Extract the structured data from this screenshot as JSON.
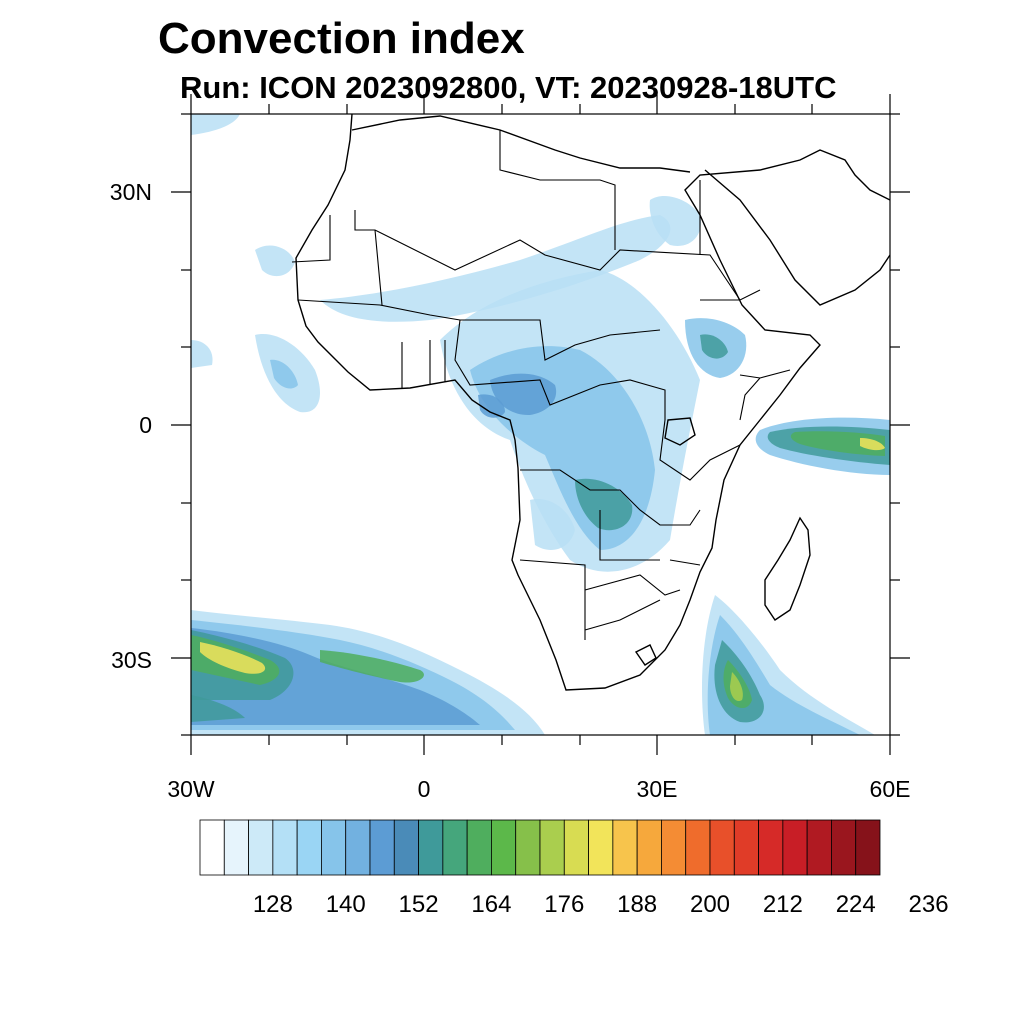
{
  "title": "Convection index",
  "subtitle": "Run: ICON 2023092800,  VT: 20230928-18UTC",
  "axes": {
    "lat_labels": [
      "30N",
      "0",
      "30S"
    ],
    "lon_labels": [
      "30W",
      "0",
      "30E",
      "60E"
    ]
  },
  "colorbar": {
    "labels": [
      "128",
      "140",
      "152",
      "164",
      "176",
      "188",
      "200",
      "212",
      "224",
      "236"
    ],
    "colors": [
      "#ffffff",
      "#e6f4fc",
      "#cdeaf8",
      "#b4e0f6",
      "#9ad5f4",
      "#86c4ea",
      "#72b1e0",
      "#5c9cd4",
      "#4a8bb8",
      "#3f9a9a",
      "#45a67c",
      "#4fae5e",
      "#5cb84a",
      "#86c04a",
      "#aace4e",
      "#d8dc52",
      "#f2e45a",
      "#f7c44c",
      "#f6a83c",
      "#f48c34",
      "#ef6c2c",
      "#e8502a",
      "#e03c28",
      "#d62a28",
      "#c81e26",
      "#b01a22",
      "#9a161e",
      "#86121a"
    ]
  },
  "overlays": {
    "colors": {
      "light": "#b8dff5",
      "mid": "#86c4ea",
      "blue": "#5c9cd4",
      "teal": "#3f9a9a",
      "green": "#4fae5e",
      "lgreen": "#aace4e",
      "yellow": "#f2e45a"
    }
  }
}
